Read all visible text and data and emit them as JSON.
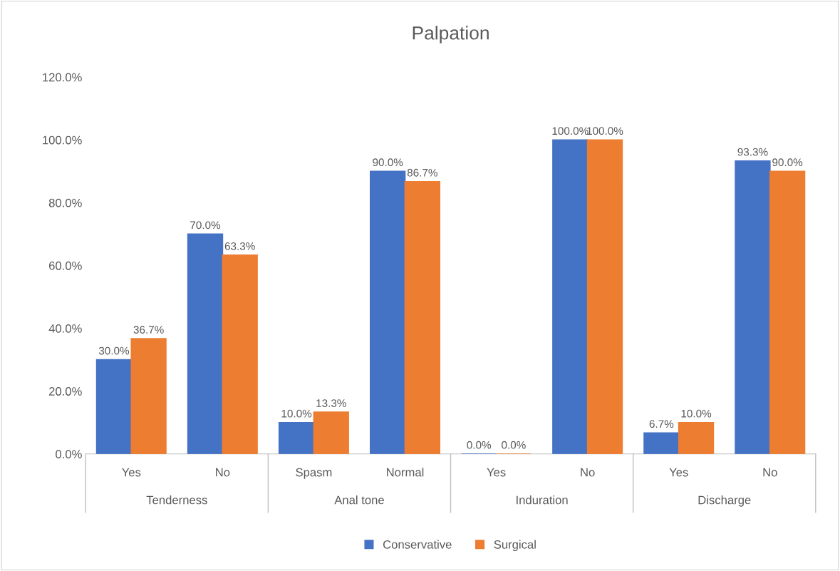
{
  "chart_data": {
    "type": "bar",
    "title": "Palpation",
    "categories": [
      "Yes",
      "No",
      "Spasm",
      "Normal",
      "Yes",
      "No",
      "Yes",
      "No"
    ],
    "series": [
      {
        "name": "Conservative",
        "color": "#4472c4",
        "values": [
          30.0,
          70.0,
          10.0,
          90.0,
          0.0,
          100.0,
          6.7,
          93.3
        ],
        "value_labels": [
          "30.0%",
          "70.0%",
          "10.0%",
          "90.0%",
          "0.0%",
          "100.0%",
          "6.7%",
          "93.3%"
        ]
      },
      {
        "name": "Surgical",
        "color": "#ed7d31",
        "values": [
          36.7,
          63.3,
          13.3,
          86.7,
          0.0,
          100.0,
          10.0,
          90.0
        ],
        "value_labels": [
          "36.7%",
          "63.3%",
          "13.3%",
          "86.7%",
          "0.0%",
          "100.0%",
          "10.0%",
          "90.0%"
        ]
      }
    ],
    "annotations": [
      "Tenderness",
      "Anal tone",
      "Induration",
      "Discharge"
    ],
    "ylim": [
      0,
      120
    ],
    "yticks": [
      {
        "value": 0,
        "label": "0.0%"
      },
      {
        "value": 20,
        "label": "20.0%"
      },
      {
        "value": 40,
        "label": "40.0%"
      },
      {
        "value": 60,
        "label": "60.0%"
      },
      {
        "value": 80,
        "label": "80.0%"
      },
      {
        "value": 100,
        "label": "100.0%"
      },
      {
        "value": 120,
        "label": "120.0%"
      }
    ],
    "grid": false,
    "legend": "bottom"
  }
}
